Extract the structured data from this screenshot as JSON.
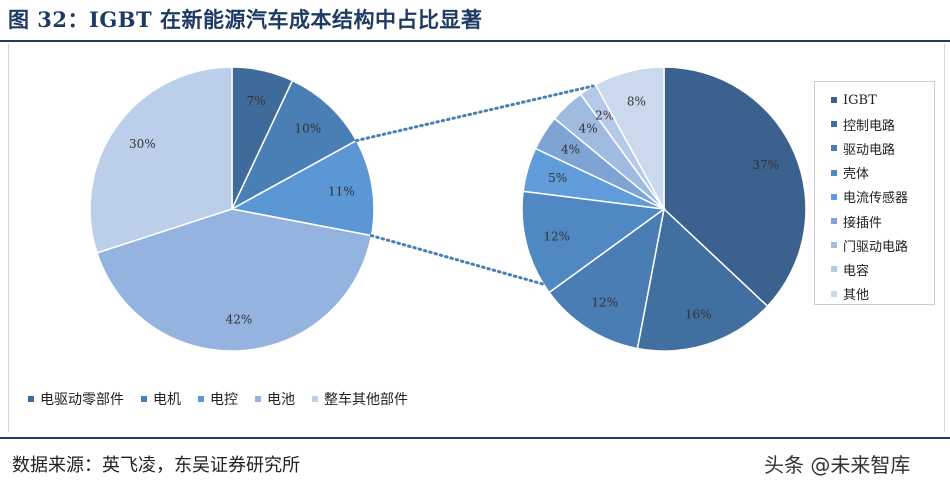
{
  "title": "图 32：IGBT 在新能源汽车成本结构中占比显著",
  "source": "数据来源：英飞凌，东吴证券研究所",
  "watermark": "头条 @未来智库",
  "chart_data": [
    {
      "type": "pie",
      "name_note": "",
      "slices": [
        {
          "label": "电驱动零部件",
          "value": 7,
          "value_label": "7%",
          "color": "#3f6b9a"
        },
        {
          "label": "电机",
          "value": 10,
          "value_label": "10%",
          "color": "#4a7fb5"
        },
        {
          "label": "电控",
          "value": 11,
          "value_label": "11%",
          "color": "#5b97d4"
        },
        {
          "label": "电池",
          "value": 42,
          "value_label": "42%",
          "color": "#94b3de"
        },
        {
          "label": "整车其他部件",
          "value": 30,
          "value_label": "30%",
          "color": "#bccfea"
        }
      ],
      "legend_placement": "bottom"
    },
    {
      "type": "pie",
      "slices": [
        {
          "label": "IGBT",
          "value": 37,
          "value_label": "37%",
          "color": "#3b628f"
        },
        {
          "label": "控制电路",
          "value": 16,
          "value_label": "16%",
          "color": "#416f9f"
        },
        {
          "label": "驱动电路",
          "value": 12,
          "value_label": "12%",
          "color": "#4a7db4"
        },
        {
          "label": "壳体",
          "value": 12,
          "value_label": "12%",
          "color": "#5088c3"
        },
        {
          "label": "电流传感器",
          "value": 5,
          "value_label": "5%",
          "color": "#5f9cd9"
        },
        {
          "label": "接插件",
          "value": 4,
          "value_label": "4%",
          "color": "#7ea4d3"
        },
        {
          "label": "门驱动电路",
          "value": 4,
          "value_label": "4%",
          "color": "#9fbbe0"
        },
        {
          "label": "电容",
          "value": 2,
          "value_label": "2%",
          "color": "#b4cae8"
        },
        {
          "label": "其他",
          "value": 8,
          "value_label": "8%",
          "color": "#cbd9ed"
        }
      ],
      "legend_placement": "right"
    }
  ]
}
